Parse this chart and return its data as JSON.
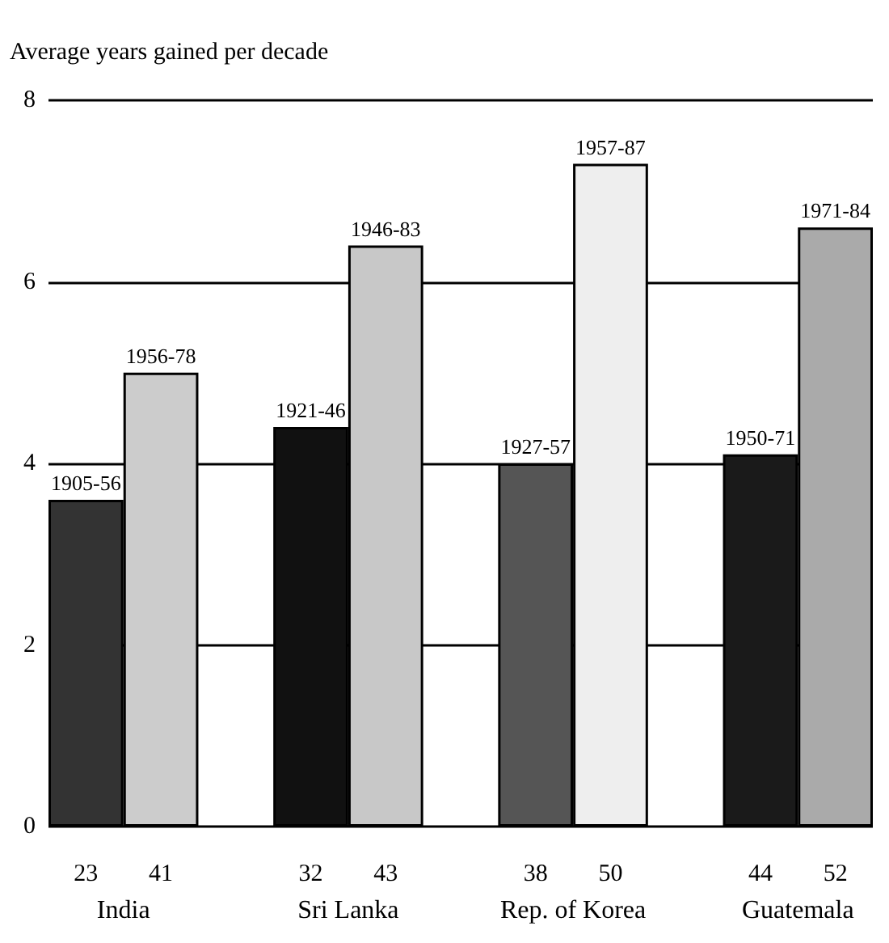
{
  "chart_data": {
    "type": "bar",
    "ylabel": "Average years gained per decade",
    "categories": [
      "23",
      "41",
      null,
      "32",
      "43",
      null,
      "38",
      "50",
      null,
      "44",
      "52"
    ],
    "values": [
      3.6,
      5.0,
      null,
      4.4,
      6.4,
      null,
      4.0,
      7.3,
      null,
      4.1,
      6.6
    ],
    "colors": [
      "#333333",
      "#cccccc",
      null,
      "#111111",
      "#c8c8c8",
      null,
      "#555555",
      "#eeeeee",
      null,
      "#1a1a1a",
      "#aaaaaa"
    ],
    "value_labels": [
      "1905-56",
      "1956-78",
      null,
      "1921-46",
      "1946-83",
      null,
      "1927-57",
      "1957-87",
      null,
      "1950-71",
      "1971-84"
    ],
    "annotations": [
      "India",
      "Sri Lanka",
      "Rep. of Korea",
      "Guatemala"
    ],
    "ylim": [
      0,
      8
    ],
    "yticks": [
      0,
      2,
      4,
      6,
      8
    ],
    "grid": "y"
  }
}
